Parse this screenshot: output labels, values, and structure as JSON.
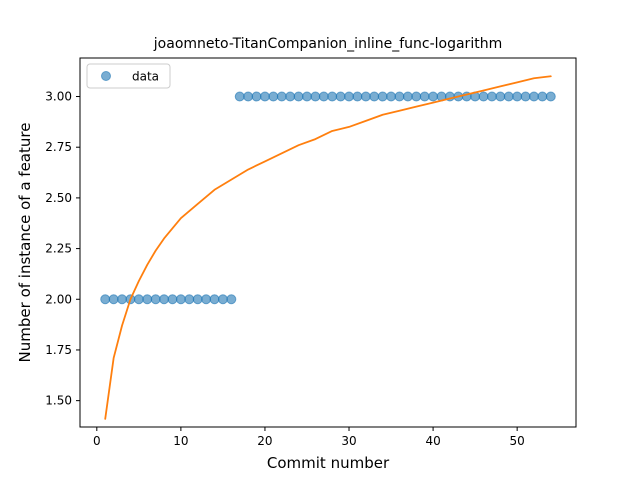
{
  "chart_data": {
    "type": "scatter",
    "title": "joaomneto-TitanCompanion_inline_func-logarithm",
    "xlabel": "Commit number",
    "ylabel": "Number of instance of a feature",
    "xlim": [
      -2,
      57
    ],
    "ylim": [
      1.37,
      3.19
    ],
    "x_ticks": [
      0,
      10,
      20,
      30,
      40,
      50
    ],
    "y_ticks": [
      1.5,
      1.75,
      2.0,
      2.25,
      2.5,
      2.75,
      3.0
    ],
    "x_tick_labels": [
      "0",
      "10",
      "20",
      "30",
      "40",
      "50"
    ],
    "y_tick_labels": [
      "1.50",
      "1.75",
      "2.00",
      "2.25",
      "2.50",
      "2.75",
      "3.00"
    ],
    "legend": {
      "position": "top-left",
      "entries": [
        "data"
      ]
    },
    "series": [
      {
        "name": "data",
        "kind": "scatter",
        "color": "#1f77b4",
        "x": [
          1,
          2,
          3,
          4,
          5,
          6,
          7,
          8,
          9,
          10,
          11,
          12,
          13,
          14,
          15,
          16,
          17,
          18,
          19,
          20,
          21,
          22,
          23,
          24,
          25,
          26,
          27,
          28,
          29,
          30,
          31,
          32,
          33,
          34,
          35,
          36,
          37,
          38,
          39,
          40,
          41,
          42,
          43,
          44,
          45,
          46,
          47,
          48,
          49,
          50,
          51,
          52,
          53,
          54
        ],
        "y": [
          2,
          2,
          2,
          2,
          2,
          2,
          2,
          2,
          2,
          2,
          2,
          2,
          2,
          2,
          2,
          2,
          3,
          3,
          3,
          3,
          3,
          3,
          3,
          3,
          3,
          3,
          3,
          3,
          3,
          3,
          3,
          3,
          3,
          3,
          3,
          3,
          3,
          3,
          3,
          3,
          3,
          3,
          3,
          3,
          3,
          3,
          3,
          3,
          3,
          3,
          3,
          3,
          3,
          3
        ]
      },
      {
        "kind": "line",
        "color": "#ff7f0e",
        "x": [
          1,
          2,
          3,
          4,
          5,
          6,
          7,
          8,
          9,
          10,
          12,
          14,
          16,
          18,
          20,
          22,
          24,
          26,
          28,
          30,
          32,
          34,
          36,
          38,
          40,
          42,
          44,
          46,
          48,
          50,
          52,
          54
        ],
        "y": [
          1.41,
          1.71,
          1.87,
          2.0,
          2.09,
          2.17,
          2.24,
          2.3,
          2.35,
          2.4,
          2.47,
          2.54,
          2.59,
          2.64,
          2.68,
          2.72,
          2.76,
          2.79,
          2.83,
          2.85,
          2.88,
          2.91,
          2.93,
          2.95,
          2.97,
          2.99,
          3.01,
          3.03,
          3.05,
          3.07,
          3.09,
          3.1
        ]
      }
    ]
  }
}
